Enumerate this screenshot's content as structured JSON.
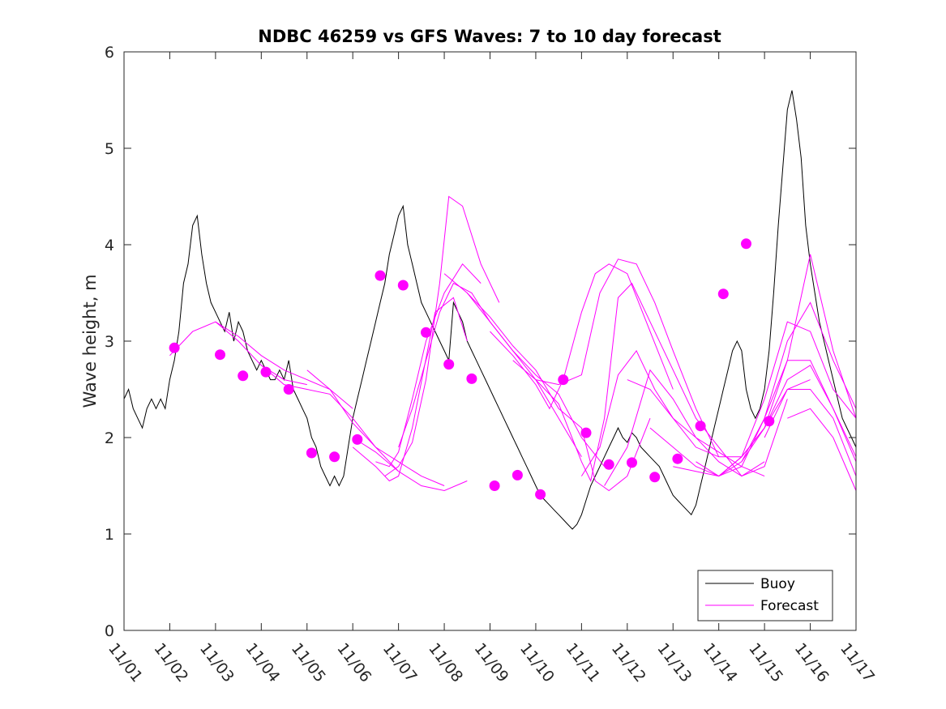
{
  "chart_data": {
    "type": "line",
    "title": "NDBC 46259 vs GFS Waves: 7 to 10 day forecast",
    "xlabel": "",
    "ylabel": "Wave height, m",
    "xlim": [
      0,
      16
    ],
    "ylim": [
      0,
      6
    ],
    "x_tick_labels": [
      "11/01",
      "11/02",
      "11/03",
      "11/04",
      "11/05",
      "11/06",
      "11/07",
      "11/08",
      "11/09",
      "11/10",
      "11/11",
      "11/12",
      "11/13",
      "11/14",
      "11/15",
      "11/16",
      "11/17"
    ],
    "y_ticks": [
      0,
      1,
      2,
      3,
      4,
      5,
      6
    ],
    "legend": {
      "location": "bottom-right",
      "entries": [
        "Buoy",
        "Forecast"
      ]
    },
    "colors": {
      "buoy": "#000000",
      "forecast": "#ff00ff",
      "dots": "#ff00ff"
    },
    "buoy": {
      "name": "Buoy",
      "x": [
        0.0,
        0.1,
        0.2,
        0.3,
        0.4,
        0.5,
        0.6,
        0.7,
        0.8,
        0.9,
        1.0,
        1.1,
        1.2,
        1.3,
        1.4,
        1.5,
        1.6,
        1.7,
        1.8,
        1.9,
        2.0,
        2.1,
        2.2,
        2.3,
        2.4,
        2.5,
        2.6,
        2.7,
        2.8,
        2.9,
        3.0,
        3.1,
        3.2,
        3.3,
        3.4,
        3.5,
        3.6,
        3.7,
        3.8,
        3.9,
        4.0,
        4.1,
        4.2,
        4.3,
        4.4,
        4.5,
        4.6,
        4.7,
        4.8,
        4.9,
        5.0,
        5.1,
        5.2,
        5.3,
        5.4,
        5.5,
        5.6,
        5.7,
        5.8,
        5.9,
        6.0,
        6.1,
        6.2,
        6.3,
        6.4,
        6.5,
        6.6,
        6.7,
        6.8,
        6.9,
        7.0,
        7.1,
        7.2,
        7.3,
        7.4,
        7.5,
        7.6,
        7.7,
        7.8,
        7.9,
        8.0,
        8.1,
        8.2,
        8.3,
        8.4,
        8.5,
        8.6,
        8.7,
        8.8,
        8.9,
        9.0,
        9.1,
        9.2,
        9.3,
        9.4,
        9.5,
        9.6,
        9.7,
        9.8,
        9.9,
        10.0,
        10.1,
        10.2,
        10.3,
        10.4,
        10.5,
        10.6,
        10.7,
        10.8,
        10.9,
        11.0,
        11.1,
        11.2,
        11.3,
        11.4,
        11.5,
        11.6,
        11.7,
        11.8,
        11.9,
        12.0,
        12.1,
        12.2,
        12.3,
        12.4,
        12.5,
        12.6,
        12.7,
        12.8,
        12.9,
        13.0,
        13.1,
        13.2,
        13.3,
        13.4,
        13.5,
        13.6,
        13.7,
        13.8,
        13.9,
        14.0,
        14.1,
        14.2,
        14.3,
        14.4,
        14.5,
        14.6,
        14.7,
        14.8,
        14.9,
        15.0,
        15.1,
        15.2,
        15.3,
        15.4,
        15.5,
        15.6,
        15.7,
        15.8,
        15.9,
        16.0
      ],
      "values": [
        2.4,
        2.5,
        2.3,
        2.2,
        2.1,
        2.3,
        2.4,
        2.3,
        2.4,
        2.3,
        2.6,
        2.8,
        3.1,
        3.6,
        3.8,
        4.2,
        4.3,
        3.9,
        3.6,
        3.4,
        3.3,
        3.2,
        3.1,
        3.3,
        3.0,
        3.2,
        3.1,
        2.9,
        2.8,
        2.7,
        2.8,
        2.7,
        2.6,
        2.6,
        2.7,
        2.6,
        2.8,
        2.5,
        2.4,
        2.3,
        2.2,
        2.0,
        1.9,
        1.7,
        1.6,
        1.5,
        1.6,
        1.5,
        1.6,
        1.9,
        2.2,
        2.4,
        2.6,
        2.8,
        3.0,
        3.2,
        3.4,
        3.6,
        3.9,
        4.1,
        4.3,
        4.4,
        4.0,
        3.8,
        3.6,
        3.4,
        3.3,
        3.2,
        3.1,
        3.0,
        2.9,
        2.8,
        3.4,
        3.3,
        3.2,
        3.0,
        2.9,
        2.8,
        2.7,
        2.6,
        2.5,
        2.4,
        2.3,
        2.2,
        2.1,
        2.0,
        1.9,
        1.8,
        1.7,
        1.6,
        1.5,
        1.4,
        1.35,
        1.3,
        1.25,
        1.2,
        1.15,
        1.1,
        1.05,
        1.1,
        1.2,
        1.35,
        1.5,
        1.6,
        1.7,
        1.8,
        1.9,
        2.0,
        2.1,
        2.0,
        1.95,
        2.05,
        2.0,
        1.9,
        1.85,
        1.8,
        1.75,
        1.7,
        1.6,
        1.5,
        1.4,
        1.35,
        1.3,
        1.25,
        1.2,
        1.3,
        1.5,
        1.7,
        1.9,
        2.1,
        2.3,
        2.5,
        2.7,
        2.9,
        3.0,
        2.9,
        2.5,
        2.3,
        2.2,
        2.3,
        2.5,
        2.9,
        3.5,
        4.2,
        4.8,
        5.4,
        5.6,
        5.3,
        4.9,
        4.2,
        3.8,
        3.5,
        3.2,
        3.0,
        2.8,
        2.6,
        2.4,
        2.2,
        2.1,
        2.0,
        1.9
      ]
    },
    "forecast_series": [
      {
        "name": "Forecast",
        "x": [
          1.0,
          1.5,
          2.0,
          2.5,
          3.0,
          3.5,
          4.0
        ],
        "values": [
          2.85,
          3.1,
          3.2,
          3.0,
          2.75,
          2.6,
          2.55
        ]
      },
      {
        "name": "Forecast",
        "x": [
          2.0,
          2.5,
          3.0,
          3.5,
          4.0,
          4.5,
          5.0
        ],
        "values": [
          3.2,
          3.05,
          2.85,
          2.7,
          2.6,
          2.5,
          2.3
        ]
      },
      {
        "name": "Forecast",
        "x": [
          3.0,
          3.5,
          4.0,
          4.5,
          5.0,
          5.5,
          6.0
        ],
        "values": [
          2.75,
          2.55,
          2.5,
          2.45,
          2.2,
          1.9,
          1.65
        ]
      },
      {
        "name": "Forecast",
        "x": [
          4.0,
          4.5,
          5.0,
          5.5,
          6.0,
          6.5,
          7.0
        ],
        "values": [
          2.7,
          2.5,
          2.15,
          1.9,
          1.75,
          1.6,
          1.5
        ]
      },
      {
        "name": "Forecast",
        "x": [
          5.0,
          5.5,
          6.0,
          6.5,
          7.0,
          7.5
        ],
        "values": [
          2.0,
          1.85,
          1.65,
          1.5,
          1.45,
          1.55
        ]
      },
      {
        "name": "Forecast",
        "x": [
          5.0,
          5.5,
          5.8,
          6.0,
          6.3,
          6.8,
          7.2,
          7.5
        ],
        "values": [
          1.9,
          1.7,
          1.55,
          1.6,
          2.1,
          3.3,
          3.45,
          3.0
        ]
      },
      {
        "name": "Forecast",
        "x": [
          5.5,
          5.8,
          6.0,
          6.3,
          6.6,
          7.0,
          7.4,
          7.8
        ],
        "values": [
          1.75,
          1.7,
          1.85,
          2.4,
          3.0,
          3.5,
          3.8,
          3.6
        ]
      },
      {
        "name": "Forecast",
        "x": [
          5.7,
          6.0,
          6.3,
          6.6,
          6.9,
          7.1,
          7.4,
          7.8,
          8.2
        ],
        "values": [
          1.6,
          1.7,
          1.95,
          2.6,
          3.6,
          4.5,
          4.4,
          3.8,
          3.4
        ]
      },
      {
        "name": "Forecast",
        "x": [
          6.0,
          6.3,
          6.6,
          6.9,
          7.2,
          7.6,
          8.0,
          8.5,
          9.0,
          9.5,
          10.0
        ],
        "values": [
          1.9,
          2.3,
          2.8,
          3.3,
          3.6,
          3.5,
          3.2,
          2.9,
          2.6,
          2.2,
          1.8
        ]
      },
      {
        "name": "Forecast",
        "x": [
          7.0,
          7.5,
          8.0,
          8.5,
          9.0,
          9.5,
          10.0,
          10.5
        ],
        "values": [
          3.7,
          3.5,
          3.2,
          2.9,
          2.65,
          2.45,
          2.0,
          1.7
        ]
      },
      {
        "name": "Forecast",
        "x": [
          7.5,
          8.0,
          8.5,
          9.0,
          9.5,
          10.0,
          10.3,
          10.6,
          11.0,
          11.5
        ],
        "values": [
          3.5,
          3.25,
          2.95,
          2.7,
          2.3,
          2.1,
          1.55,
          1.45,
          1.6,
          2.2
        ]
      },
      {
        "name": "Forecast",
        "x": [
          8.0,
          8.5,
          9.0,
          9.3,
          9.6,
          10.0,
          10.3,
          10.6,
          11.0,
          11.5,
          12.0
        ],
        "values": [
          3.1,
          2.85,
          2.55,
          2.3,
          2.6,
          3.3,
          3.7,
          3.8,
          3.7,
          3.1,
          2.5
        ]
      },
      {
        "name": "Forecast",
        "x": [
          8.5,
          9.0,
          9.5,
          10.0,
          10.4,
          10.8,
          11.2,
          11.6,
          12.0,
          12.5,
          13.0
        ],
        "values": [
          2.8,
          2.6,
          2.55,
          2.65,
          3.5,
          3.85,
          3.8,
          3.4,
          2.9,
          2.3,
          1.8
        ]
      },
      {
        "name": "Forecast",
        "x": [
          9.0,
          9.5,
          10.0,
          10.2,
          10.5,
          10.8,
          11.1,
          11.5,
          12.0,
          12.5,
          13.0,
          13.5,
          14.0
        ],
        "values": [
          2.6,
          2.35,
          1.75,
          1.55,
          2.2,
          3.45,
          3.6,
          3.2,
          2.7,
          2.2,
          1.9,
          1.6,
          1.75
        ]
      },
      {
        "name": "Forecast",
        "x": [
          10.0,
          10.4,
          10.8,
          11.2,
          11.6,
          12.0,
          12.5,
          13.0,
          13.5,
          14.0
        ],
        "values": [
          1.6,
          1.9,
          2.65,
          2.9,
          2.5,
          2.2,
          2.0,
          1.85,
          1.7,
          1.6
        ]
      },
      {
        "name": "Forecast",
        "x": [
          10.5,
          11.0,
          11.5,
          12.0,
          12.5,
          13.0,
          13.5,
          14.0,
          14.5
        ],
        "values": [
          1.5,
          1.9,
          2.7,
          2.4,
          2.0,
          1.75,
          1.6,
          1.7,
          2.4
        ]
      },
      {
        "name": "Forecast",
        "x": [
          11.0,
          11.5,
          12.0,
          12.5,
          13.0,
          13.5,
          14.0,
          14.5,
          15.0
        ],
        "values": [
          2.6,
          2.5,
          2.2,
          1.9,
          1.8,
          1.8,
          2.1,
          2.5,
          2.6
        ]
      },
      {
        "name": "Forecast",
        "x": [
          11.5,
          12.0,
          12.5,
          13.0,
          13.5,
          14.0,
          14.5,
          15.0,
          15.5,
          16.0
        ],
        "values": [
          2.1,
          1.9,
          1.7,
          1.6,
          1.8,
          2.4,
          3.2,
          3.1,
          2.5,
          2.2
        ]
      },
      {
        "name": "Forecast",
        "x": [
          12.0,
          12.5,
          13.0,
          13.5,
          14.0,
          14.5,
          15.0,
          15.5,
          16.0
        ],
        "values": [
          1.7,
          1.65,
          1.6,
          1.75,
          2.2,
          3.0,
          3.4,
          2.8,
          2.3
        ]
      },
      {
        "name": "Forecast",
        "x": [
          12.5,
          13.0,
          13.5,
          14.0,
          14.5,
          15.0,
          15.5,
          16.0
        ],
        "values": [
          1.75,
          1.6,
          1.8,
          2.1,
          2.8,
          3.9,
          2.9,
          2.2
        ]
      },
      {
        "name": "Forecast",
        "x": [
          13.0,
          13.5,
          14.0,
          14.5,
          15.0,
          15.5,
          16.0
        ],
        "values": [
          1.6,
          1.7,
          2.2,
          2.8,
          2.8,
          2.3,
          1.8
        ]
      },
      {
        "name": "Forecast",
        "x": [
          13.5,
          14.0,
          14.5,
          15.0,
          15.5,
          16.0
        ],
        "values": [
          1.75,
          2.1,
          2.6,
          2.75,
          2.3,
          1.75
        ]
      },
      {
        "name": "Forecast",
        "x": [
          14.0,
          14.5,
          15.0,
          15.5,
          16.0
        ],
        "values": [
          2.0,
          2.5,
          2.5,
          2.2,
          1.6
        ]
      },
      {
        "name": "Forecast",
        "x": [
          14.5,
          15.0,
          15.5,
          16.0
        ],
        "values": [
          2.2,
          2.3,
          2.0,
          1.45
        ]
      }
    ],
    "forecast_points": {
      "x": [
        1.1,
        2.1,
        2.6,
        3.1,
        3.6,
        4.1,
        4.6,
        5.1,
        5.6,
        6.1,
        6.6,
        7.1,
        7.6,
        8.1,
        8.6,
        9.1,
        9.6,
        10.1,
        10.6,
        11.1,
        11.6,
        12.1,
        12.6,
        13.1,
        13.6,
        14.1
      ],
      "values": [
        2.93,
        2.86,
        2.64,
        2.68,
        2.5,
        1.84,
        1.8,
        1.98,
        3.68,
        3.58,
        3.09,
        2.76,
        2.61,
        1.5,
        1.61,
        1.41,
        2.6,
        2.05,
        1.72,
        1.74,
        1.59,
        1.78,
        2.12,
        3.49,
        4.01,
        2.17
      ]
    }
  }
}
